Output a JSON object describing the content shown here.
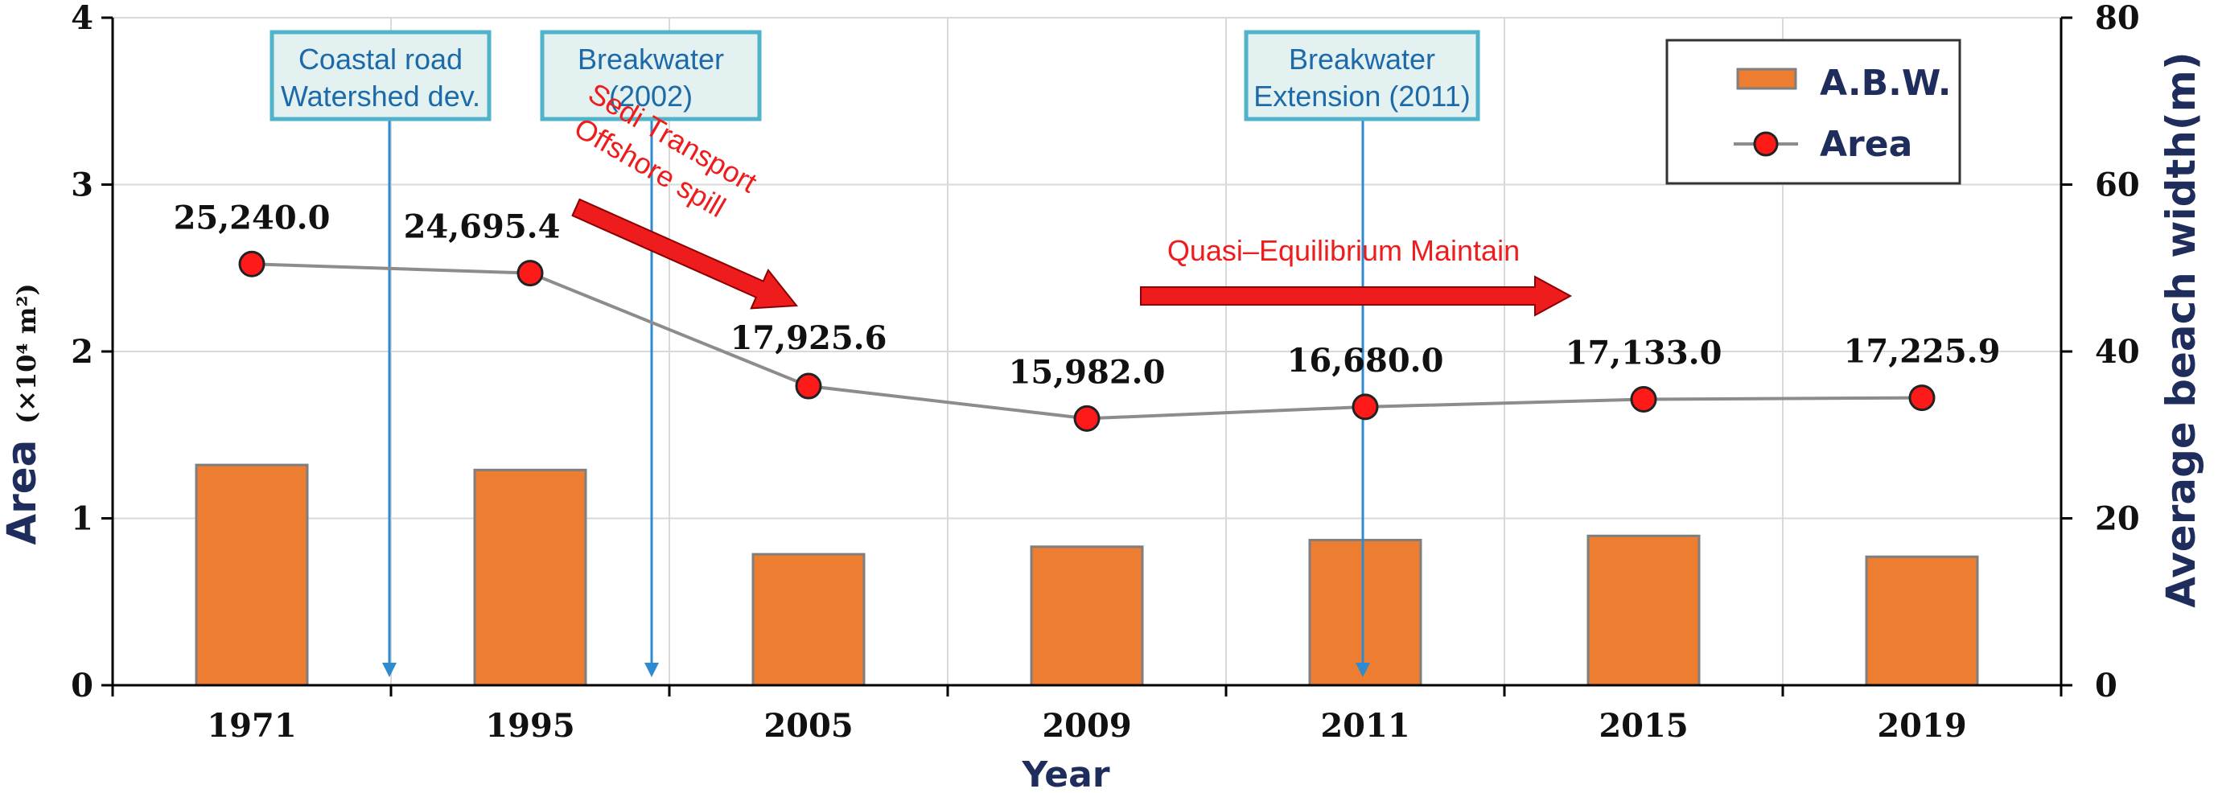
{
  "chart_data": {
    "type": "bar+line",
    "categories": [
      "1971",
      "1995",
      "2005",
      "2009",
      "2011",
      "2015",
      "2019"
    ],
    "series": [
      {
        "name": "A.B.W.",
        "type": "bar",
        "axis": "right",
        "color": "#ed7d31",
        "values": [
          26.4,
          25.8,
          15.7,
          16.6,
          17.4,
          17.9,
          15.4
        ]
      },
      {
        "name": "Area",
        "type": "line",
        "axis": "left",
        "color": "#ff1a1a",
        "values": [
          2.524,
          2.46954,
          1.79256,
          1.5982,
          1.668,
          1.7133,
          1.72259
        ],
        "labels": [
          "25,240.0",
          "24,695.4",
          "17,925.6",
          "15,982.0",
          "16,680.0",
          "17,133.0",
          "17,225.9"
        ]
      }
    ],
    "xlabel": "Year",
    "ylabel_left_main": "Area",
    "ylabel_left_unit": "(×10⁴ m²)",
    "ylabel_right": "Average beach width(m)",
    "ylim_left": [
      0,
      4
    ],
    "yticks_left": [
      "0",
      "1",
      "2",
      "3",
      "4"
    ],
    "ylim_right": [
      0,
      80
    ],
    "yticks_right": [
      "0",
      "20",
      "40",
      "60",
      "80"
    ],
    "legend_position": "top-right",
    "annotations": [
      {
        "kind": "event",
        "line1": "Coastal road",
        "line2": "Watershed dev.",
        "between": [
          0,
          1
        ]
      },
      {
        "kind": "event",
        "line1": "Breakwater",
        "line2": "(2002)",
        "between": [
          1,
          2
        ]
      },
      {
        "kind": "event",
        "line1": "Breakwater",
        "line2": "Extension (2011)",
        "between": [
          4,
          4
        ]
      },
      {
        "kind": "trend",
        "line1": "Sedi Transport",
        "line2": "Offshore  spill"
      },
      {
        "kind": "trend",
        "line1": "Quasi–Equilibrium  Maintain"
      }
    ],
    "colors": {
      "bar": "#ed7d31",
      "bar_border": "#7f7f7f",
      "marker": "#ff1a1a",
      "line": "#8c8c8c",
      "event_line": "#2e8bd0",
      "event_box": "#e3f1f1",
      "trend_arrow": "#ee1c1c",
      "axis_label": "#1f2d5c"
    }
  }
}
